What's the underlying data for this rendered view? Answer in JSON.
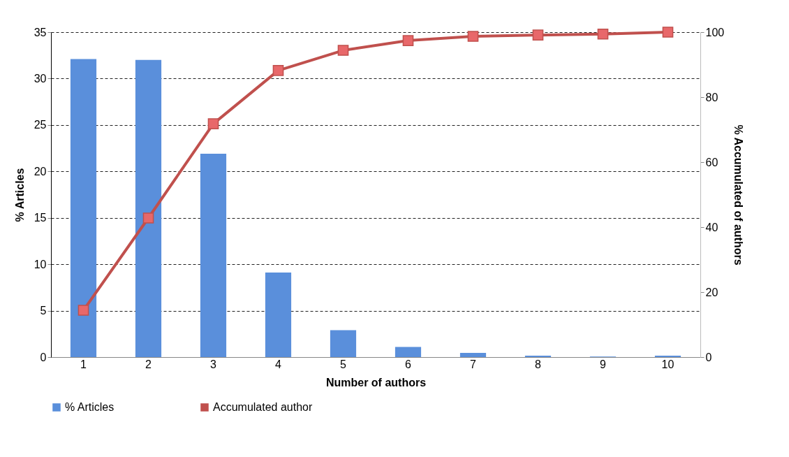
{
  "chart_data": {
    "type": "bar",
    "xlabel": "Number of authors",
    "ylabel": "% Articles",
    "y2label": "% Accumulated of authors",
    "categories": [
      "1",
      "2",
      "3",
      "4",
      "5",
      "6",
      "7",
      "8",
      "9",
      "10"
    ],
    "series": [
      {
        "name": "% Articles",
        "color": "#5a8fdb",
        "values": [
          32.1,
          32.0,
          21.9,
          9.1,
          2.9,
          1.1,
          0.45,
          0.15,
          0.05,
          0.15
        ]
      },
      {
        "name": "Accumulated author",
        "type": "line",
        "axis": "y2",
        "color": "#c0504d",
        "marker": "square",
        "values": [
          14.4,
          42.8,
          71.8,
          88.2,
          94.4,
          97.4,
          98.7,
          99.1,
          99.4,
          100
        ]
      }
    ],
    "ylim": [
      0,
      35
    ],
    "yticks": [
      0,
      5,
      10,
      15,
      20,
      25,
      30,
      35
    ],
    "y2lim": [
      0,
      100
    ],
    "y2ticks": [
      0,
      20,
      40,
      60,
      80,
      100
    ],
    "grid": "y",
    "legend": "bottom"
  }
}
